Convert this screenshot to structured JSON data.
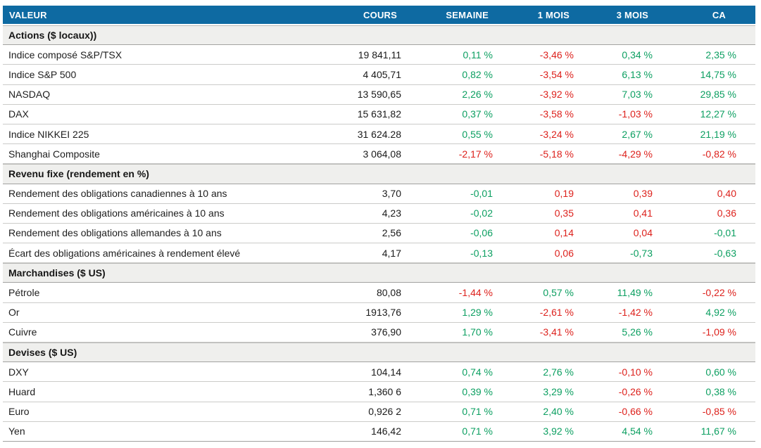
{
  "colors": {
    "header_bg": "#0E6AA2",
    "header_text": "#FFFFFF",
    "positive": "#0C9F61",
    "negative": "#DD211C",
    "section_bg": "#EFEFED",
    "text": "#1E1E1E",
    "row_line": "#CBCBC9",
    "section_line": "#A2A2A0",
    "page_bg": "#FFFFFF"
  },
  "chart_data": {
    "type": "table",
    "columns": [
      "VALEUR",
      "COURS",
      "SEMAINE",
      "1 MOIS",
      "3 MOIS",
      "CA"
    ],
    "sections": [
      {
        "label": "Actions ($ locaux))",
        "rows": [
          {
            "name": "Indice composé S&P/TSX",
            "cours": "19 841,11",
            "changes": [
              {
                "text": "0,11 %",
                "tone": "up"
              },
              {
                "text": "-3,46 %",
                "tone": "down"
              },
              {
                "text": "0,34 %",
                "tone": "up"
              },
              {
                "text": "2,35 %",
                "tone": "up"
              }
            ]
          },
          {
            "name": "Indice S&P 500",
            "cours": "4 405,71",
            "changes": [
              {
                "text": "0,82 %",
                "tone": "up"
              },
              {
                "text": "-3,54 %",
                "tone": "down"
              },
              {
                "text": "6,13 %",
                "tone": "up"
              },
              {
                "text": "14,75 %",
                "tone": "up"
              }
            ]
          },
          {
            "name": "NASDAQ",
            "cours": "13 590,65",
            "changes": [
              {
                "text": "2,26 %",
                "tone": "up"
              },
              {
                "text": "-3,92 %",
                "tone": "down"
              },
              {
                "text": "7,03 %",
                "tone": "up"
              },
              {
                "text": "29,85 %",
                "tone": "up"
              }
            ]
          },
          {
            "name": "DAX",
            "cours": "15 631,82",
            "changes": [
              {
                "text": "0,37 %",
                "tone": "up"
              },
              {
                "text": "-3,58 %",
                "tone": "down"
              },
              {
                "text": "-1,03 %",
                "tone": "down"
              },
              {
                "text": "12,27 %",
                "tone": "up"
              }
            ]
          },
          {
            "name": "Indice NIKKEI 225",
            "cours": "31 624.28",
            "changes": [
              {
                "text": "0,55 %",
                "tone": "up"
              },
              {
                "text": "-3,24 %",
                "tone": "down"
              },
              {
                "text": "2,67 %",
                "tone": "up"
              },
              {
                "text": "21,19 %",
                "tone": "up"
              }
            ]
          },
          {
            "name": "Shanghai Composite",
            "cours": "3 064,08",
            "changes": [
              {
                "text": "-2,17 %",
                "tone": "down"
              },
              {
                "text": "-5,18 %",
                "tone": "down"
              },
              {
                "text": "-4,29 %",
                "tone": "down"
              },
              {
                "text": "-0,82 %",
                "tone": "down"
              }
            ]
          }
        ]
      },
      {
        "label": "Revenu fixe (rendement en %)",
        "rows": [
          {
            "name": "Rendement des obligations canadiennes à 10 ans",
            "cours": "3,70",
            "changes": [
              {
                "text": "-0,01",
                "tone": "up"
              },
              {
                "text": "0,19",
                "tone": "down"
              },
              {
                "text": "0,39",
                "tone": "down"
              },
              {
                "text": "0,40",
                "tone": "down"
              }
            ]
          },
          {
            "name": "Rendement des obligations américaines à 10 ans",
            "cours": "4,23",
            "changes": [
              {
                "text": "-0,02",
                "tone": "up"
              },
              {
                "text": "0,35",
                "tone": "down"
              },
              {
                "text": "0,41",
                "tone": "down"
              },
              {
                "text": "0,36",
                "tone": "down"
              }
            ]
          },
          {
            "name": "Rendement des obligations allemandes à 10 ans",
            "cours": "2,56",
            "changes": [
              {
                "text": "-0,06",
                "tone": "up"
              },
              {
                "text": "0,14",
                "tone": "down"
              },
              {
                "text": "0,04",
                "tone": "down"
              },
              {
                "text": "-0,01",
                "tone": "up"
              }
            ]
          },
          {
            "name": "Écart des obligations américaines à rendement élevé",
            "cours": "4,17",
            "changes": [
              {
                "text": "-0,13",
                "tone": "up"
              },
              {
                "text": "0,06",
                "tone": "down"
              },
              {
                "text": "-0,73",
                "tone": "up"
              },
              {
                "text": "-0,63",
                "tone": "up"
              }
            ]
          }
        ]
      },
      {
        "label": "Marchandises ($ US)",
        "rows": [
          {
            "name": "Pétrole",
            "cours": "80,08",
            "changes": [
              {
                "text": "-1,44 %",
                "tone": "down"
              },
              {
                "text": "0,57 %",
                "tone": "up"
              },
              {
                "text": "11,49 %",
                "tone": "up"
              },
              {
                "text": "-0,22 %",
                "tone": "down"
              }
            ]
          },
          {
            "name": "Or",
            "cours": "1913,76",
            "changes": [
              {
                "text": "1,29 %",
                "tone": "up"
              },
              {
                "text": "-2,61 %",
                "tone": "down"
              },
              {
                "text": "-1,42 %",
                "tone": "down"
              },
              {
                "text": "4,92 %",
                "tone": "up"
              }
            ]
          },
          {
            "name": "Cuivre",
            "cours": "376,90",
            "changes": [
              {
                "text": "1,70 %",
                "tone": "up"
              },
              {
                "text": "-3,41 %",
                "tone": "down"
              },
              {
                "text": "5,26 %",
                "tone": "up"
              },
              {
                "text": "-1,09 %",
                "tone": "down"
              }
            ]
          }
        ]
      },
      {
        "label": "Devises ($ US)",
        "rows": [
          {
            "name": "DXY",
            "cours": "104,14",
            "changes": [
              {
                "text": "0,74 %",
                "tone": "up"
              },
              {
                "text": "2,76 %",
                "tone": "up"
              },
              {
                "text": "-0,10 %",
                "tone": "down"
              },
              {
                "text": "0,60 %",
                "tone": "up"
              }
            ]
          },
          {
            "name": "Huard",
            "cours": "1,360 6",
            "changes": [
              {
                "text": "0,39 %",
                "tone": "up"
              },
              {
                "text": "3,29 %",
                "tone": "up"
              },
              {
                "text": "-0,26 %",
                "tone": "down"
              },
              {
                "text": "0,38 %",
                "tone": "up"
              }
            ]
          },
          {
            "name": "Euro",
            "cours": "0,926 2",
            "changes": [
              {
                "text": "0,71 %",
                "tone": "up"
              },
              {
                "text": "2,40 %",
                "tone": "up"
              },
              {
                "text": "-0,66 %",
                "tone": "down"
              },
              {
                "text": "-0,85 %",
                "tone": "down"
              }
            ]
          },
          {
            "name": "Yen",
            "cours": "146,42",
            "changes": [
              {
                "text": "0,71 %",
                "tone": "up"
              },
              {
                "text": "3,92 %",
                "tone": "up"
              },
              {
                "text": "4,54 %",
                "tone": "up"
              },
              {
                "text": "11,67 %",
                "tone": "up"
              }
            ]
          }
        ]
      }
    ]
  }
}
